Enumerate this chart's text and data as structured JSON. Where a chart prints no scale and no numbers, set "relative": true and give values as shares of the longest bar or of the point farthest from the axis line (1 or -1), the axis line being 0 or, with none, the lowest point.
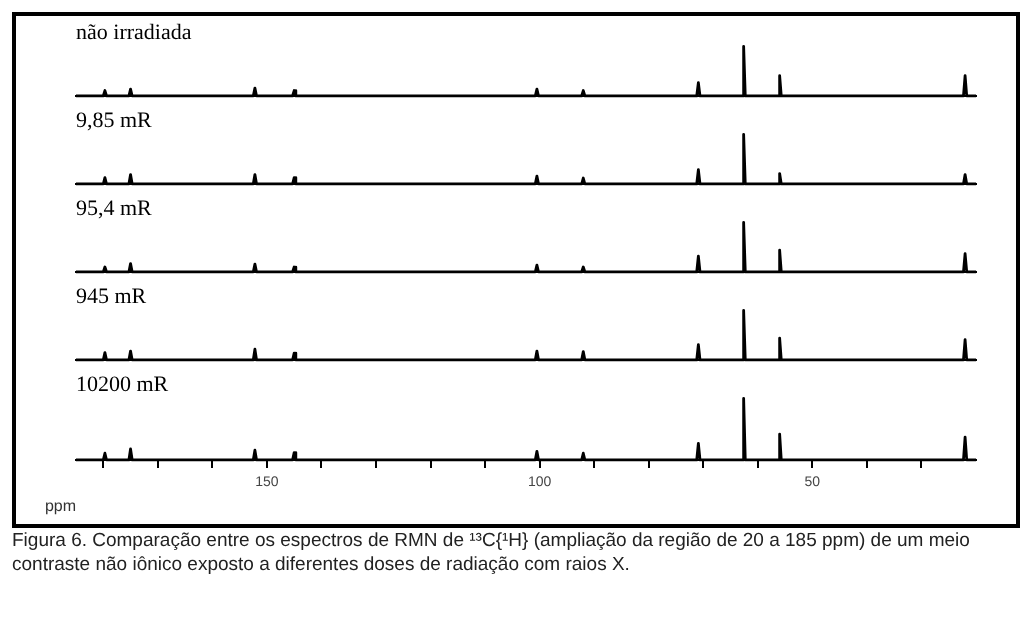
{
  "chart_data": [
    {
      "type": "line",
      "title": "não irradiada",
      "relative": true,
      "color": "#000000",
      "xlim": [
        185,
        20
      ],
      "x": [
        185,
        180,
        179.7,
        179.4,
        175.3,
        175,
        174.7,
        152.5,
        152.2,
        151.9,
        145.3,
        145,
        144.7,
        100.8,
        100.5,
        100.2,
        92.3,
        92,
        91.7,
        71.2,
        70.9,
        70.6,
        62.9,
        62.6,
        62.3,
        56.3,
        56,
        55.7,
        22.3,
        22,
        21.7,
        20
      ],
      "values": [
        0,
        0,
        0.11,
        0,
        0,
        0.14,
        0,
        0,
        0.16,
        0,
        0,
        0.11,
        0,
        0,
        0.14,
        0,
        0,
        0.11,
        0,
        0,
        0.27,
        0,
        0,
        1,
        0,
        0,
        0.41,
        0,
        0,
        0.41,
        0,
        0
      ]
    },
    {
      "type": "line",
      "title": "9,85 mR",
      "relative": true,
      "color": "#000000",
      "xlim": [
        185,
        20
      ],
      "x": [
        185,
        180,
        179.7,
        179.4,
        175.3,
        175,
        174.7,
        152.5,
        152.2,
        151.9,
        145.3,
        145,
        144.7,
        100.8,
        100.5,
        100.2,
        92.3,
        92,
        91.7,
        71.2,
        70.9,
        70.6,
        62.9,
        62.6,
        62.3,
        56.3,
        56,
        55.7,
        22.3,
        22,
        21.7,
        20
      ],
      "values": [
        0,
        0,
        0.13,
        0,
        0,
        0.19,
        0,
        0,
        0.19,
        0,
        0,
        0.13,
        0,
        0,
        0.16,
        0,
        0,
        0.12,
        0,
        0,
        0.29,
        0,
        0,
        1,
        0,
        0,
        0.21,
        0,
        0,
        0.19,
        0,
        0
      ]
    },
    {
      "type": "line",
      "title": "95,4 mR",
      "relative": true,
      "color": "#000000",
      "xlim": [
        185,
        20
      ],
      "x": [
        185,
        180,
        179.7,
        179.4,
        175.3,
        175,
        174.7,
        152.5,
        152.2,
        151.9,
        145.3,
        145,
        144.7,
        100.8,
        100.5,
        100.2,
        92.3,
        92,
        91.7,
        71.2,
        70.9,
        70.6,
        62.9,
        62.6,
        62.3,
        56.3,
        56,
        55.7,
        22.3,
        22,
        21.7,
        20
      ],
      "values": [
        0,
        0,
        0.1,
        0,
        0,
        0.17,
        0,
        0,
        0.16,
        0,
        0,
        0.1,
        0,
        0,
        0.14,
        0,
        0,
        0.1,
        0,
        0,
        0.32,
        0,
        0,
        1,
        0,
        0,
        0.44,
        0,
        0,
        0.37,
        0,
        0
      ]
    },
    {
      "type": "line",
      "title": "945 mR",
      "relative": true,
      "color": "#000000",
      "xlim": [
        185,
        20
      ],
      "x": [
        185,
        180,
        179.7,
        179.4,
        175.3,
        175,
        174.7,
        152.5,
        152.2,
        151.9,
        145.3,
        145,
        144.7,
        100.8,
        100.5,
        100.2,
        92.3,
        92,
        91.7,
        71.2,
        70.9,
        70.6,
        62.9,
        62.6,
        62.3,
        56.3,
        56,
        55.7,
        22.3,
        22,
        21.7,
        20
      ],
      "values": [
        0,
        0,
        0.15,
        0,
        0,
        0.18,
        0,
        0,
        0.22,
        0,
        0,
        0.14,
        0,
        0,
        0.18,
        0,
        0,
        0.17,
        0,
        0,
        0.31,
        0,
        0,
        1,
        0,
        0,
        0.44,
        0,
        0,
        0.41,
        0,
        0
      ]
    },
    {
      "type": "line",
      "title": "10200 mR",
      "relative": true,
      "color": "#000000",
      "xlim": [
        185,
        20
      ],
      "xlabel": "ppm",
      "xticks": [
        {
          "value": 180,
          "label": null
        },
        {
          "value": 170,
          "label": null
        },
        {
          "value": 160,
          "label": null
        },
        150,
        {
          "value": 140,
          "label": null
        },
        {
          "value": 130,
          "label": null
        },
        {
          "value": 120,
          "label": null
        },
        {
          "value": 110,
          "label": null
        },
        100,
        {
          "value": 90,
          "label": null
        },
        {
          "value": 80,
          "label": null
        },
        {
          "value": 70,
          "label": null
        },
        {
          "value": 60,
          "label": null
        },
        50,
        {
          "value": 40,
          "label": null
        },
        {
          "value": 30,
          "label": null
        }
      ],
      "x": [
        185,
        180,
        179.7,
        179.4,
        175.3,
        175,
        174.7,
        152.5,
        152.2,
        151.9,
        145.3,
        145,
        144.7,
        100.8,
        100.5,
        100.2,
        92.3,
        92,
        91.7,
        71.2,
        70.9,
        70.6,
        62.9,
        62.6,
        62.3,
        56.3,
        56,
        55.7,
        22.3,
        22,
        21.7,
        20
      ],
      "values": [
        0,
        0,
        0.11,
        0,
        0,
        0.18,
        0,
        0,
        0.16,
        0,
        0,
        0.12,
        0,
        0,
        0.14,
        0,
        0,
        0.11,
        0,
        0,
        0.27,
        0,
        0,
        1,
        0,
        0,
        0.42,
        0,
        0,
        0.37,
        0,
        0
      ],
      "annotations": [
        "Figura 6. Comparação entre os espectros de RMN de ¹³C{¹H} (ampliação da região de 20 a 185 ppm) de um meio contraste não iônico exposto a diferentes doses de radiação com raios X."
      ]
    }
  ]
}
